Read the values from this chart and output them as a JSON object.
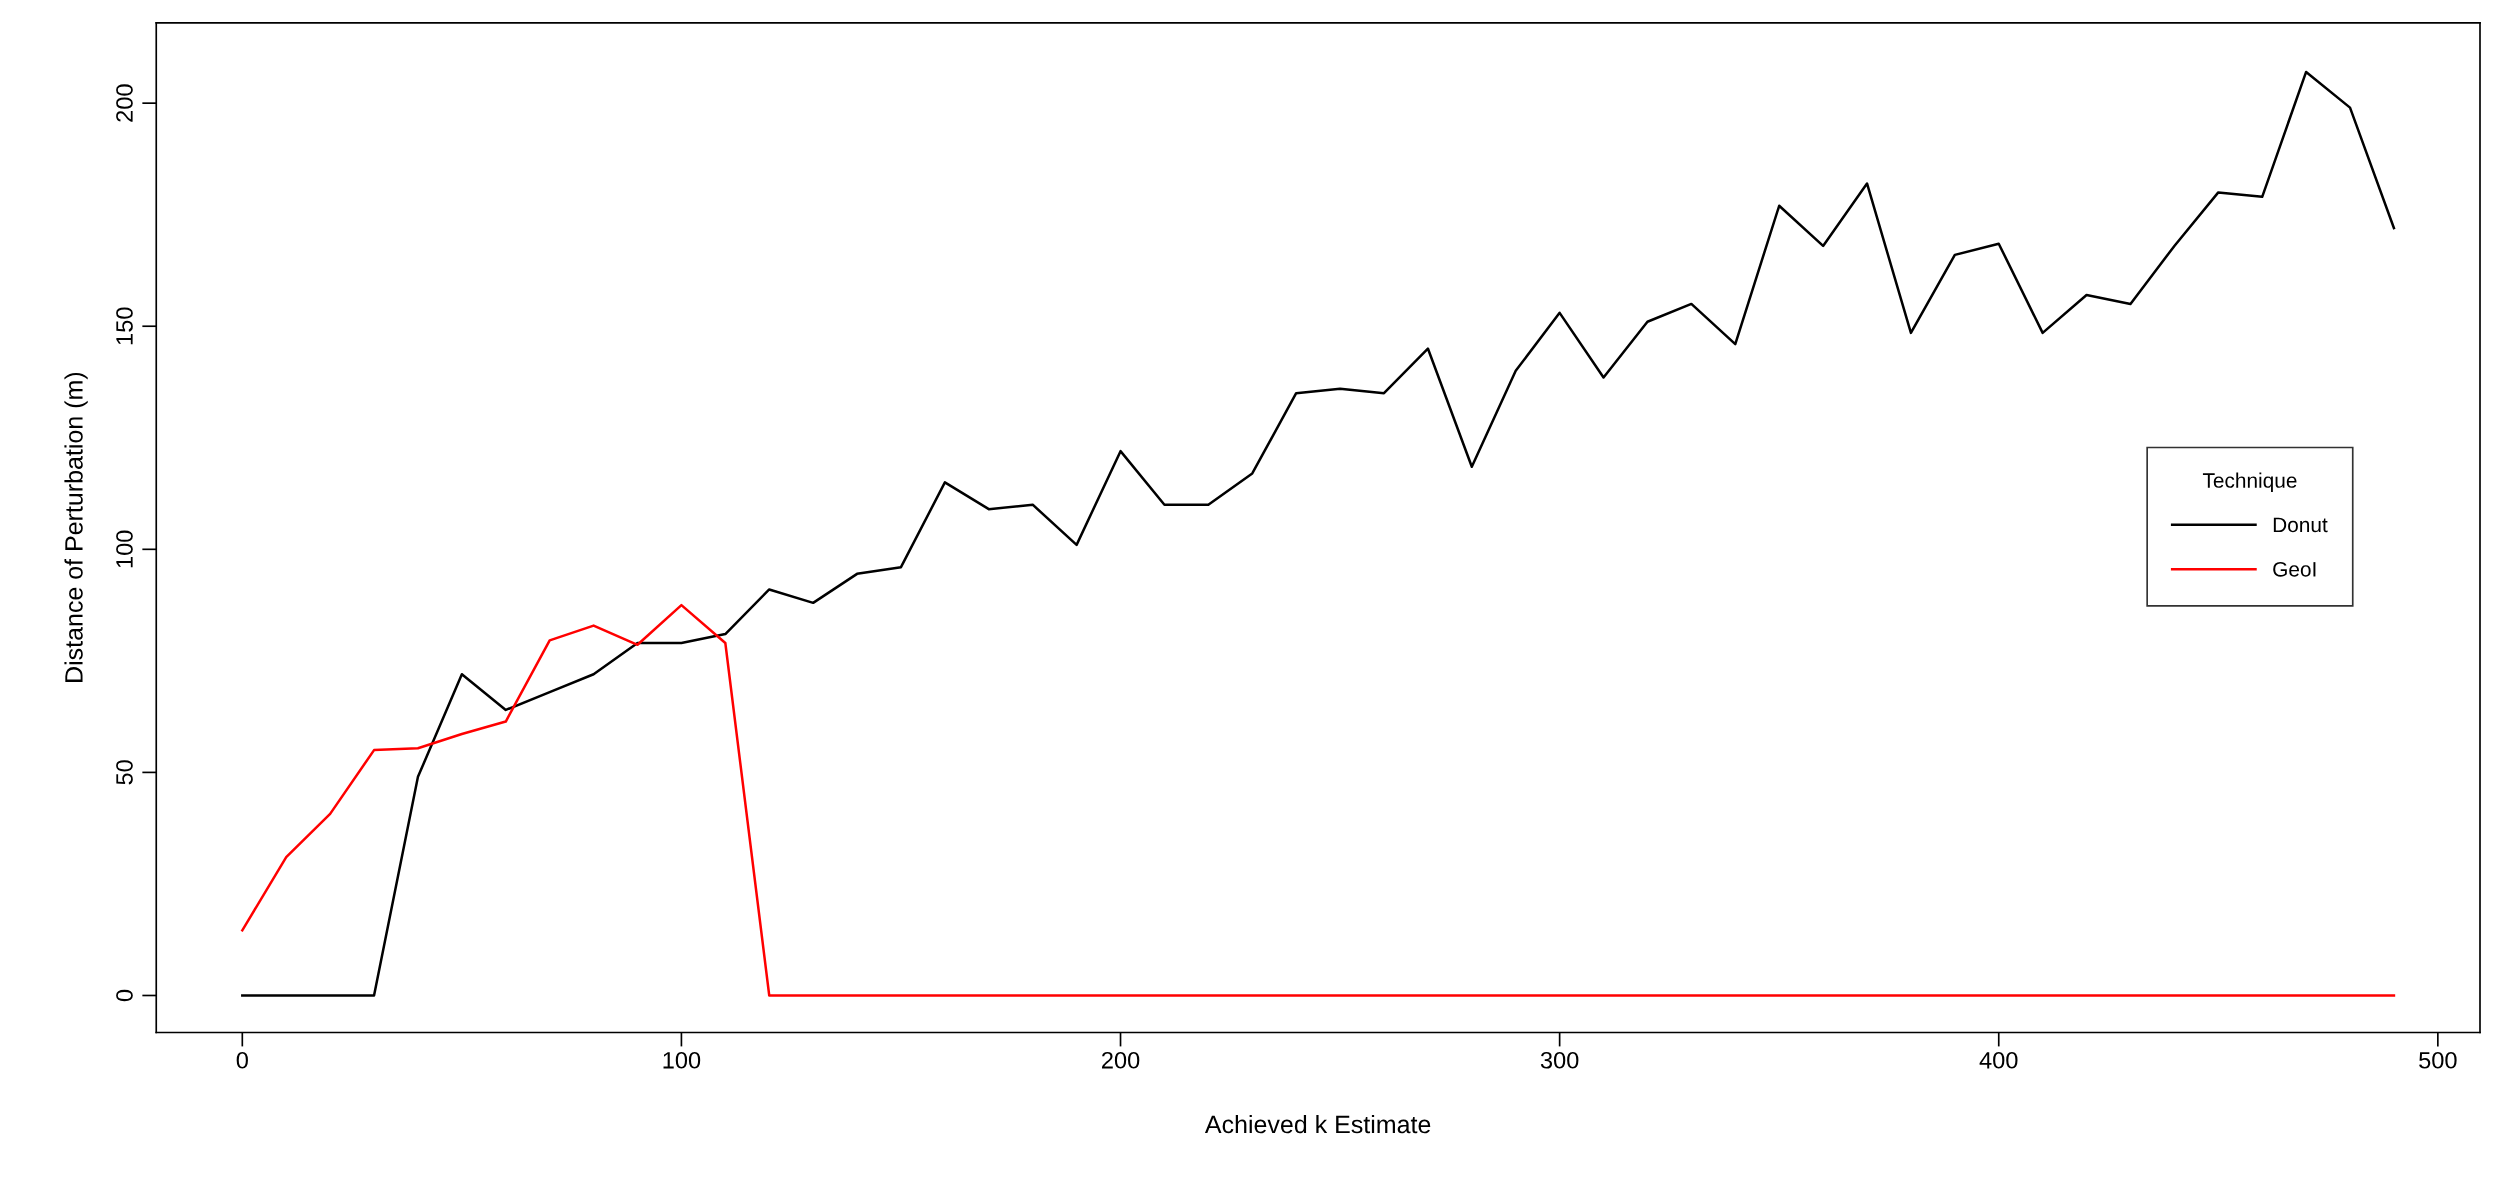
{
  "chart_data": {
    "type": "line",
    "xlabel": "Achieved k Estimate",
    "ylabel": "Distance of Perturbation (m)",
    "legend_title": "Technique",
    "legend": "right",
    "grid": false,
    "x": [
      0,
      10,
      20,
      30,
      40,
      50,
      60,
      70,
      80,
      90,
      100,
      110,
      120,
      130,
      140,
      150,
      160,
      170,
      180,
      190,
      200,
      210,
      220,
      230,
      240,
      250,
      260,
      270,
      280,
      290,
      300,
      310,
      320,
      330,
      340,
      350,
      360,
      370,
      380,
      390,
      400,
      410,
      420,
      430,
      440,
      450,
      460,
      470,
      480,
      490
    ],
    "series": [
      {
        "name": "Donut",
        "color": "#000000",
        "values": [
          0,
          0,
          0,
          0,
          49,
          72,
          64,
          68,
          72,
          79,
          79,
          81,
          91,
          88,
          94.5,
          96,
          115,
          109,
          110,
          101,
          122,
          110,
          110,
          117,
          135,
          136,
          135,
          145,
          118.5,
          140,
          153,
          138.5,
          151,
          155,
          146,
          177,
          168,
          182,
          148.5,
          166,
          168.5,
          148.5,
          157,
          155,
          168,
          180,
          179,
          207,
          199,
          172
        ]
      },
      {
        "name": "GeoI",
        "color": "#ff0000",
        "values": [
          14.6,
          31,
          40.7,
          55,
          55.4,
          58.6,
          61.4,
          79.6,
          82.9,
          78.6,
          87.5,
          79,
          0,
          0,
          0,
          0,
          0,
          0,
          0,
          0,
          0,
          0,
          0,
          0,
          0,
          0,
          0,
          0,
          0,
          0,
          0,
          0,
          0,
          0,
          0,
          0,
          0,
          0,
          0,
          0,
          0,
          0,
          0,
          0,
          0,
          0,
          0,
          0,
          0,
          0
        ]
      }
    ],
    "xlim": [
      -19.6,
      509.6
    ],
    "xticks": [
      0,
      100,
      200,
      300,
      400,
      500
    ],
    "ylim": [
      -8.3,
      218
    ],
    "yticks": [
      0,
      50,
      100,
      150,
      200
    ]
  }
}
